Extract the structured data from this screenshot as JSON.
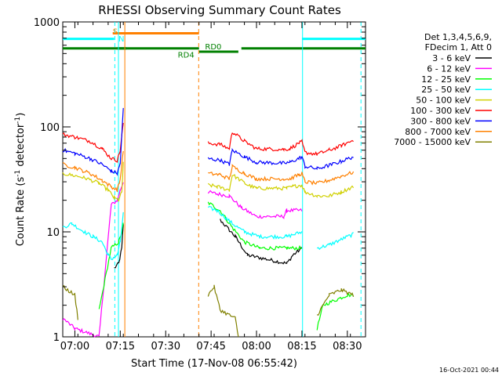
{
  "chart_data": {
    "type": "line",
    "title": "RHESSI Observing Summary Count Rates",
    "xlabel": "Start Time (17-Nov-08 06:55:42)",
    "ylabel_main": "Count Rate (s",
    "ylabel_sup1": "-1",
    "ylabel_mid": " detector",
    "ylabel_sup2": "-1",
    "ylabel_end": ")",
    "y_scale": "log",
    "ylim": [
      1,
      1000
    ],
    "xlim_minutes": [
      -4,
      96
    ],
    "x_ticks": [
      {
        "minute": 0,
        "label": "07:00"
      },
      {
        "minute": 15,
        "label": "07:15"
      },
      {
        "minute": 30,
        "label": "07:30"
      },
      {
        "minute": 45,
        "label": "07:45"
      },
      {
        "minute": 60,
        "label": "08:00"
      },
      {
        "minute": 75,
        "label": "08:15"
      },
      {
        "minute": 90,
        "label": "08:30"
      }
    ],
    "y_ticks": [
      {
        "value": 1,
        "label": "1"
      },
      {
        "value": 10,
        "label": "10"
      },
      {
        "value": 100,
        "label": "100"
      },
      {
        "value": 1000,
        "label": "1000"
      }
    ],
    "legend_header": [
      "Det 1,3,4,5,6,9,",
      "FDecim 1, Att 0"
    ],
    "legend_position": "right",
    "series": [
      {
        "name": "3 - 6 keV",
        "color": "#000000",
        "x": [
          -4,
          8,
          11,
          13,
          14.5,
          15.5,
          16,
          16.5,
          44,
          48,
          53,
          57,
          70,
          72,
          75,
          76
        ],
        "y": [
          null,
          null,
          null,
          4.5,
          5,
          7,
          12,
          null,
          null,
          13,
          9,
          6,
          5,
          6,
          7,
          null
        ]
      },
      {
        "name": "6 - 12 keV",
        "color": "#ff00ff",
        "x": [
          -4,
          0,
          8,
          12,
          14,
          15,
          16,
          16.5,
          44,
          47,
          51,
          55,
          60,
          69,
          70,
          75,
          76
        ],
        "y": [
          1.5,
          1.2,
          1,
          18,
          20,
          25,
          30,
          null,
          24,
          23,
          22,
          17,
          14,
          14,
          16,
          16,
          null
        ]
      },
      {
        "name": "12 - 25 keV",
        "color": "#00ff00",
        "x": [
          -4,
          8,
          12,
          14.5,
          15.5,
          16,
          16.5,
          44,
          48,
          52,
          56,
          61,
          70,
          75,
          76,
          80,
          82,
          90,
          92
        ],
        "y": [
          null,
          1.8,
          7,
          8,
          10,
          12,
          null,
          19,
          16,
          11,
          8,
          7,
          7,
          7,
          null,
          1.2,
          2,
          2.5,
          2.5
        ]
      },
      {
        "name": "25 - 50 keV",
        "color": "#00ffff",
        "x": [
          -4,
          -1,
          3,
          6,
          9,
          11,
          12,
          14,
          15,
          16,
          16.5,
          44,
          47,
          52,
          56,
          61,
          70,
          75,
          76,
          80,
          84,
          88,
          92
        ],
        "y": [
          11,
          12,
          10,
          9,
          8,
          6,
          5.5,
          6,
          8,
          15,
          null,
          17,
          16,
          12,
          10,
          9,
          9,
          10,
          null,
          7,
          7.5,
          8.5,
          9.5
        ]
      },
      {
        "name": "50 - 100 keV",
        "color": "#d0d000",
        "x": [
          -4,
          3,
          8,
          11,
          13,
          14.5,
          15.5,
          16,
          16.5,
          44,
          47,
          51,
          52,
          57,
          60,
          70,
          72,
          75,
          76,
          80,
          84,
          88,
          92
        ],
        "y": [
          36,
          33,
          29,
          25,
          21,
          20,
          24,
          45,
          null,
          28,
          27,
          25,
          35,
          28,
          26,
          26,
          27,
          28,
          24,
          22,
          22,
          24,
          27
        ]
      },
      {
        "name": "100 - 300 keV",
        "color": "#ff0000",
        "x": [
          -4,
          0,
          5,
          9,
          12,
          14,
          15,
          16,
          16.5,
          44,
          48,
          51,
          52,
          56,
          60,
          69,
          71,
          74,
          75,
          76,
          80,
          84,
          88,
          92
        ],
        "y": [
          85,
          80,
          73,
          62,
          50,
          48,
          60,
          110,
          null,
          70,
          68,
          62,
          90,
          73,
          62,
          61,
          62,
          70,
          72,
          57,
          55,
          60,
          66,
          75
        ]
      },
      {
        "name": "300 - 800 keV",
        "color": "#0000ff",
        "x": [
          -4,
          0,
          5,
          9,
          12,
          14,
          15,
          16,
          16.5,
          44,
          48,
          51,
          52,
          56,
          60,
          69,
          71,
          74,
          75,
          76,
          80,
          84,
          88,
          92
        ],
        "y": [
          60,
          56,
          50,
          44,
          38,
          36,
          45,
          150,
          null,
          50,
          48,
          44,
          60,
          52,
          46,
          45,
          46,
          50,
          52,
          42,
          40,
          43,
          47,
          52
        ]
      },
      {
        "name": "800 - 7000 keV",
        "color": "#ff8000",
        "x": [
          -4,
          0,
          5,
          9,
          12,
          14,
          15,
          16,
          16.5,
          44,
          48,
          51,
          52,
          56,
          60,
          69,
          71,
          74,
          75,
          76,
          80,
          84,
          88,
          92
        ],
        "y": [
          44,
          41,
          36,
          31,
          27,
          25,
          32,
          60,
          null,
          36,
          35,
          32,
          42,
          36,
          32,
          32,
          32,
          35,
          36,
          30,
          29,
          31,
          34,
          37
        ]
      },
      {
        "name": "7000 - 15000 keV",
        "color": "#808000",
        "x": [
          -4,
          0,
          1,
          8,
          12,
          16,
          16.5,
          44,
          46,
          48,
          53,
          54,
          56,
          75,
          78,
          80,
          84,
          88,
          92
        ],
        "y": [
          3,
          2.5,
          1.5,
          null,
          null,
          null,
          null,
          2.5,
          3,
          1.8,
          1.5,
          1,
          null,
          null,
          null,
          1.6,
          2.5,
          2.8,
          2.5
        ]
      }
    ],
    "annotations": [
      {
        "label": "S",
        "color": "#ff8000",
        "minute": 12.5,
        "level": 820
      },
      {
        "label": "N",
        "color": "#00ffff",
        "minute": 14.4,
        "level": 700
      },
      {
        "label": "RD0",
        "color": "#008000",
        "minute": 43,
        "level": 585
      },
      {
        "label": "RD4",
        "color": "#008000",
        "minute": 34,
        "level": 490
      }
    ],
    "flag_lines": [
      {
        "name": "saa-orange-bar",
        "color": "#ff8000",
        "level": 780,
        "ranges": [
          [
            12.5,
            41
          ]
        ]
      },
      {
        "name": "night-cyan-bar",
        "color": "#00ffff",
        "level": 690,
        "ranges": [
          [
            -4,
            13
          ],
          [
            75,
            96
          ]
        ]
      },
      {
        "name": "decimation-green-bar",
        "color": "#008000",
        "level": 560,
        "ranges": [
          [
            -4,
            17
          ],
          [
            14,
            41
          ],
          [
            55,
            96
          ]
        ]
      },
      {
        "name": "decimation-green-bar-low",
        "color": "#008000",
        "level": 520,
        "ranges": [
          [
            41,
            54
          ]
        ]
      }
    ],
    "vertical_markers": [
      {
        "minute": 13.2,
        "color": "#00ffff",
        "style": "dashed"
      },
      {
        "minute": 14.4,
        "color": "#00ffff",
        "style": "solid"
      },
      {
        "minute": 16.5,
        "color": "#ff8000",
        "style": "solid"
      },
      {
        "minute": 40.9,
        "color": "#ff8000",
        "style": "dashed"
      },
      {
        "minute": 75.2,
        "color": "#00ffff",
        "style": "solid"
      },
      {
        "minute": 94.5,
        "color": "#00ffff",
        "style": "dashed"
      }
    ],
    "timestamp": "16-Oct-2021 00:44"
  }
}
